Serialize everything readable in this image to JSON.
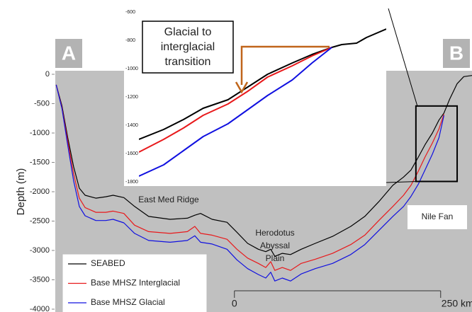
{
  "chart_data": [
    {
      "type": "line",
      "ylabel": "Depth (m)",
      "xlim": [
        -218,
        288
      ],
      "ylim": [
        -4000,
        0
      ],
      "yticks": [
        0,
        -500,
        -1000,
        -1500,
        -2000,
        -2500,
        -3000,
        -3500,
        -4000
      ],
      "x": [
        -216,
        -209,
        -202,
        -195,
        -188,
        -181,
        -168,
        -156,
        -147,
        -134,
        -121,
        -104,
        -78,
        -57,
        -48,
        -41,
        -27,
        -9,
        3,
        16,
        29,
        38,
        44,
        49,
        58,
        68,
        81,
        98,
        119,
        141,
        158,
        175,
        192,
        205,
        214,
        223,
        231,
        240,
        248,
        254,
        261,
        270,
        278,
        288
      ],
      "series": [
        {
          "name": "SEABED",
          "color": "#000000",
          "values": [
            -180,
            -540,
            -1080,
            -1570,
            -1940,
            -2060,
            -2110,
            -2085,
            -2060,
            -2100,
            -2250,
            -2420,
            -2470,
            -2450,
            -2400,
            -2370,
            -2470,
            -2520,
            -2690,
            -2880,
            -2980,
            -3020,
            -2980,
            -3100,
            -3050,
            -3070,
            -2980,
            -2880,
            -2760,
            -2590,
            -2420,
            -2170,
            -1890,
            -1750,
            -1630,
            -1410,
            -1200,
            -1000,
            -780,
            -660,
            -420,
            -160,
            -40,
            -20
          ]
        },
        {
          "name": "Base MHSZ Interglacial",
          "color": "#e8191b",
          "values": [
            -180,
            -570,
            -1140,
            -1690,
            -2110,
            -2270,
            -2350,
            -2350,
            -2330,
            -2370,
            -2570,
            -2680,
            -2710,
            -2680,
            -2590,
            -2710,
            -2740,
            -2810,
            -2980,
            -3130,
            -3220,
            -3290,
            -3190,
            -3340,
            -3290,
            -3340,
            -3220,
            -3150,
            -3050,
            -2900,
            -2740,
            -2490,
            -2250,
            -2060,
            -1890,
            -1650,
            -1410,
            -1170,
            -930,
            -680,
            null,
            null,
            null,
            null
          ]
        },
        {
          "name": "Base MHSZ Glacial",
          "color": "#1010e0",
          "values": [
            -180,
            -590,
            -1210,
            -1810,
            -2250,
            -2410,
            -2490,
            -2490,
            -2470,
            -2530,
            -2710,
            -2830,
            -2860,
            -2830,
            -2750,
            -2860,
            -2890,
            -2980,
            -3160,
            -3310,
            -3410,
            -3470,
            -3370,
            -3520,
            -3470,
            -3520,
            -3400,
            -3310,
            -3220,
            -3070,
            -2900,
            -2660,
            -2420,
            -2250,
            -2080,
            -1870,
            -1630,
            -1360,
            -1080,
            -700,
            null,
            null,
            null,
            null
          ]
        }
      ],
      "scale_bar": [
        0,
        {
          "value": 250,
          "label": "250 km"
        }
      ],
      "annotations": [
        [
          "East Med Ridge"
        ],
        [
          "Herodotus",
          "Abyssal",
          "Plain"
        ],
        [
          "Nile Fan"
        ]
      ],
      "panel_labels": [
        "A",
        "B"
      ],
      "legend": "lower left"
    },
    {
      "type": "line",
      "xlim": [
        220,
        270
      ],
      "ylim": [
        -1825,
        -540
      ],
      "yticks": [
        -600,
        -800,
        -1000,
        -1200,
        -1400,
        -1600,
        -1800
      ],
      "x": [
        220,
        225,
        229,
        233,
        238,
        242,
        246,
        251,
        255,
        259,
        261,
        264,
        266,
        270
      ],
      "series": [
        {
          "color": "#000000",
          "values": [
            -1500,
            -1430,
            -1360,
            -1280,
            -1220,
            -1130,
            -1040,
            -960,
            -900,
            -850,
            -830,
            -820,
            -780,
            -720
          ]
        },
        {
          "color": "#e8191b",
          "values": [
            -1590,
            -1500,
            -1420,
            -1330,
            -1250,
            -1160,
            -1060,
            -980,
            -910,
            -850,
            null,
            null,
            null,
            null
          ]
        },
        {
          "color": "#1010e0",
          "values": [
            -1760,
            -1680,
            -1580,
            -1480,
            -1390,
            -1290,
            -1190,
            -1080,
            -960,
            -850,
            null,
            null,
            null,
            null
          ]
        }
      ],
      "annotations": [
        [
          "Glacial to",
          "interglacial",
          "transition"
        ]
      ],
      "arrow_color": "#c0651a"
    }
  ]
}
